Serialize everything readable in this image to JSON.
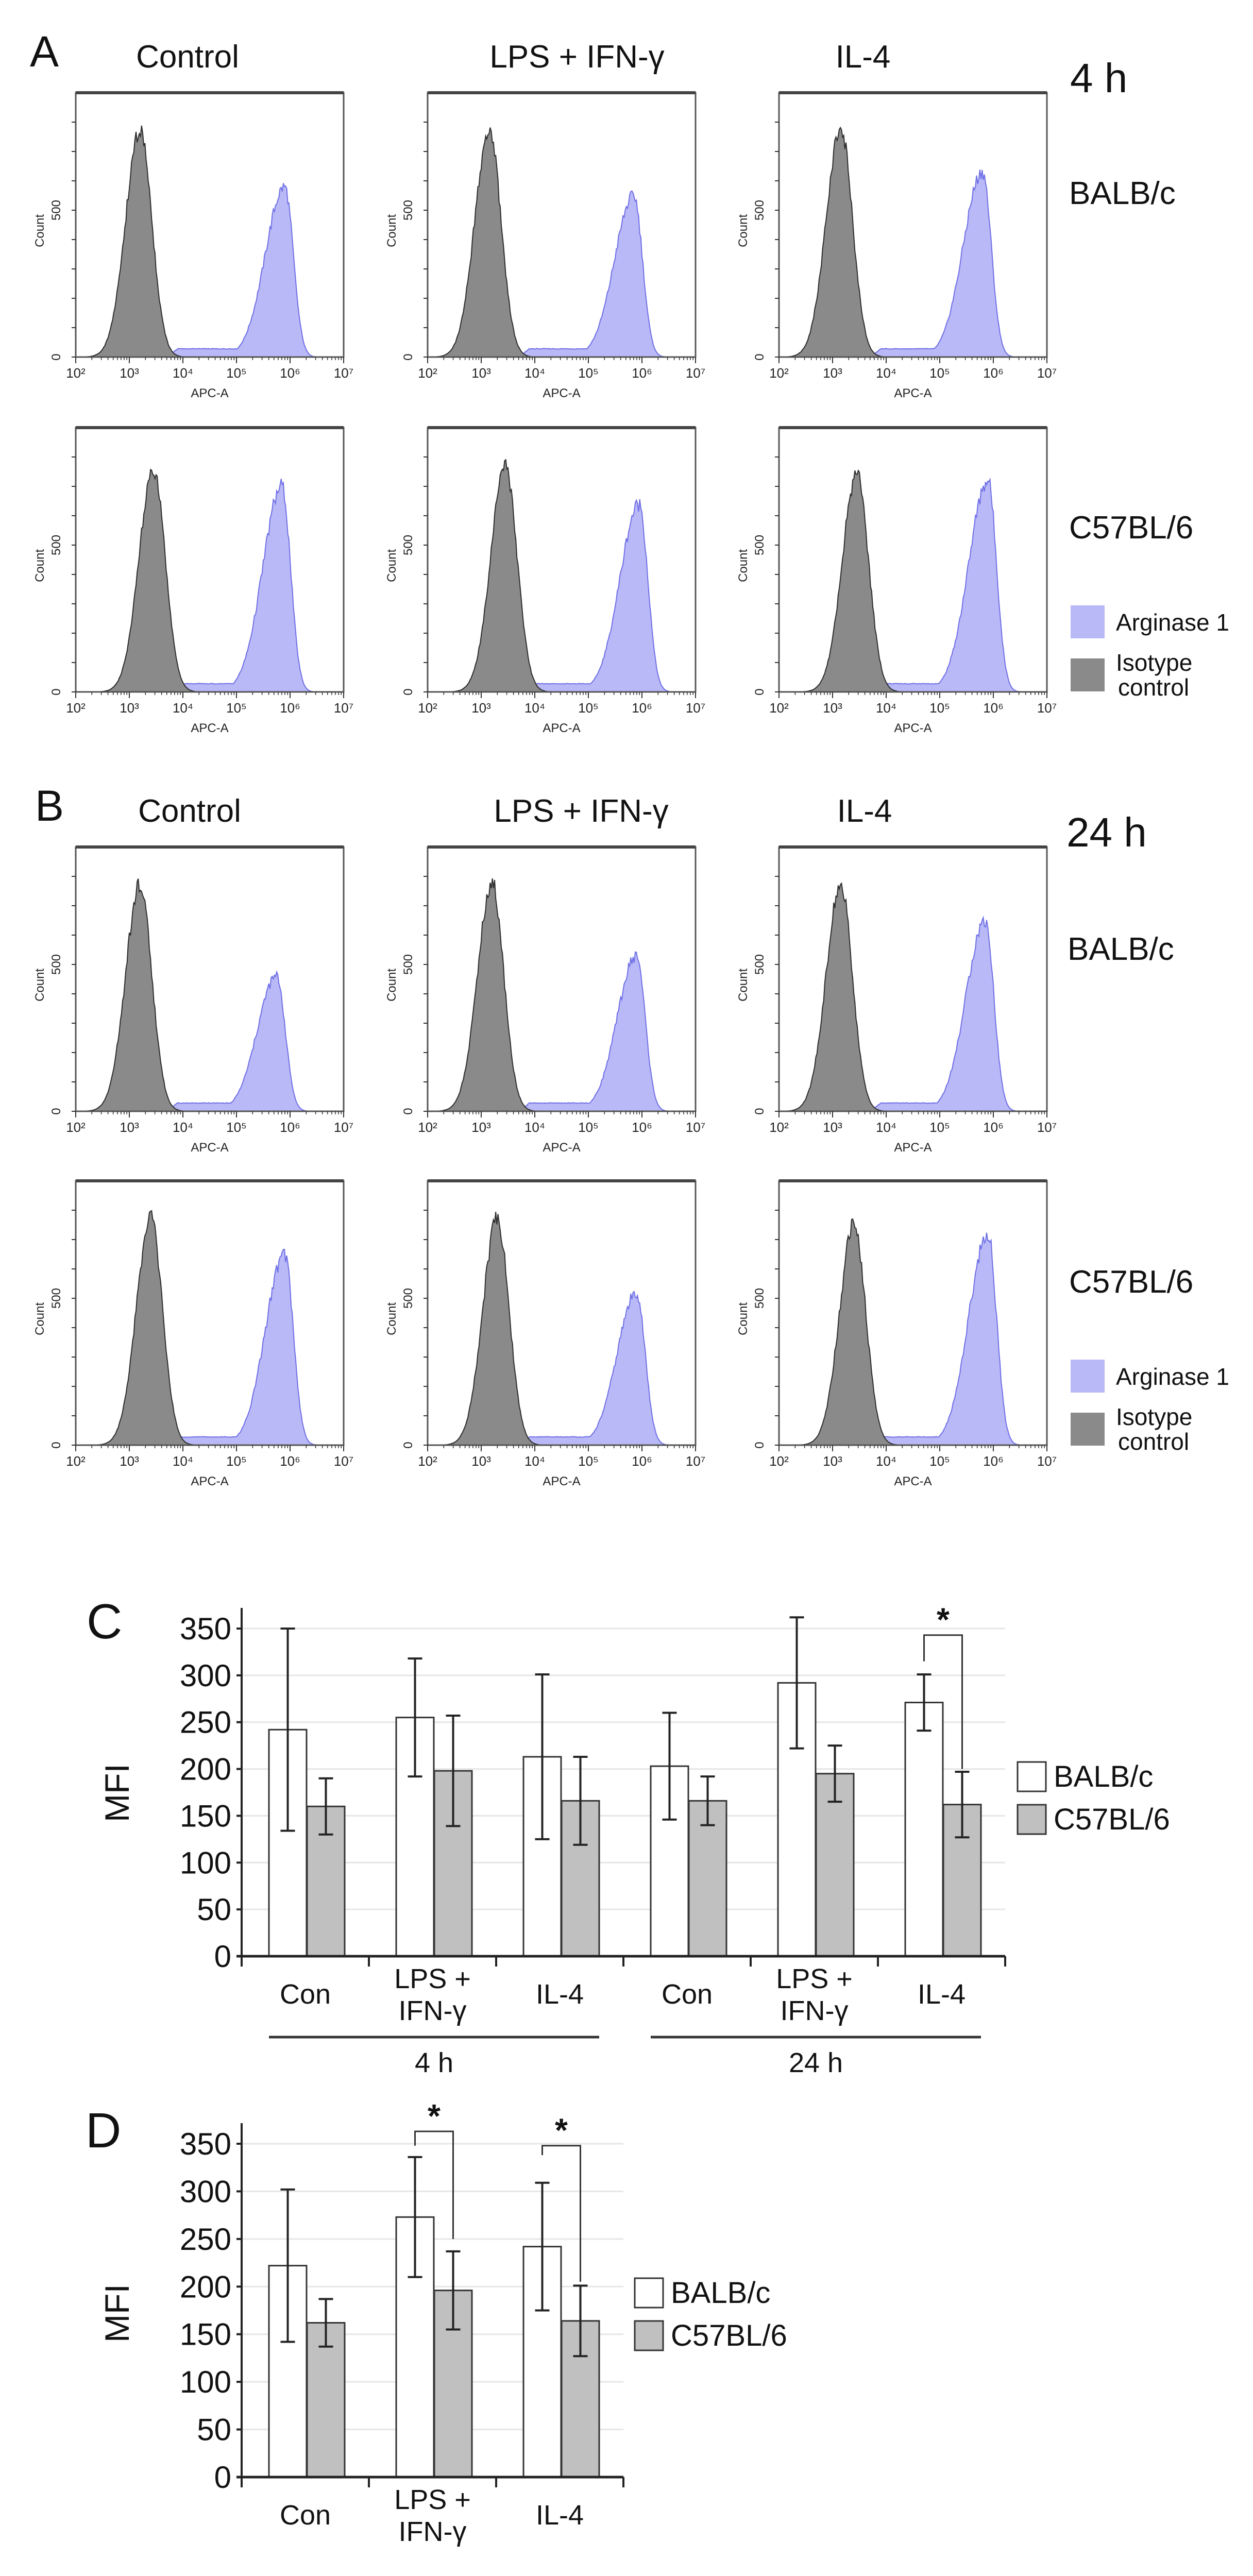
{
  "panel_labels": {
    "A": "A",
    "B": "B",
    "C": "C",
    "D": "D"
  },
  "flow": {
    "A": {
      "time": "4 h",
      "columns": [
        "Control",
        "LPS + IFN-γ",
        "IL-4"
      ],
      "rows": [
        "BALB/c",
        "C57BL/6"
      ]
    },
    "B": {
      "time": "24 h",
      "columns": [
        "Control",
        "LPS + IFN-γ",
        "IL-4"
      ],
      "rows": [
        "BALB/c",
        "C57BL/6"
      ]
    },
    "legend": [
      {
        "label": "Arginase 1",
        "color": "#b9b9f7"
      },
      {
        "label": "Isotype\ncontrol",
        "label_line1": "Isotype",
        "label_line2": "control",
        "color": "#8a8a8a"
      }
    ]
  },
  "histogram_axes": {
    "xlabel": "APC-A",
    "ylabel": "Count",
    "x_ticks": [
      "10²",
      "10³",
      "10⁴",
      "10⁵",
      "10⁶",
      "10⁷"
    ],
    "xlim_log10": [
      2,
      7
    ],
    "y_ticks": [
      "0",
      "500"
    ],
    "ylim": [
      0,
      900
    ]
  },
  "chart_data": [
    {
      "type": "area",
      "panel": "A",
      "time": "4 h",
      "strain": "BALB/c",
      "treatment": "Control",
      "series": [
        {
          "name": "Isotype control",
          "peak_log10": 3.2,
          "peak_count": 770
        },
        {
          "name": "Arginase 1",
          "peak_log10": 5.9,
          "peak_count": 580
        }
      ]
    },
    {
      "type": "area",
      "panel": "A",
      "time": "4 h",
      "strain": "BALB/c",
      "treatment": "LPS + IFN-γ",
      "series": [
        {
          "name": "Isotype control",
          "peak_log10": 3.15,
          "peak_count": 770
        },
        {
          "name": "Arginase 1",
          "peak_log10": 5.85,
          "peak_count": 550
        }
      ]
    },
    {
      "type": "area",
      "panel": "A",
      "time": "4 h",
      "strain": "BALB/c",
      "treatment": "IL-4",
      "series": [
        {
          "name": "Isotype control",
          "peak_log10": 3.15,
          "peak_count": 780
        },
        {
          "name": "Arginase 1",
          "peak_log10": 5.8,
          "peak_count": 630
        }
      ]
    },
    {
      "type": "area",
      "panel": "A",
      "time": "4 h",
      "strain": "C57BL/6",
      "treatment": "Control",
      "series": [
        {
          "name": "Isotype control",
          "peak_log10": 3.45,
          "peak_count": 750
        },
        {
          "name": "Arginase 1",
          "peak_log10": 5.85,
          "peak_count": 700
        }
      ]
    },
    {
      "type": "area",
      "panel": "A",
      "time": "4 h",
      "strain": "C57BL/6",
      "treatment": "LPS + IFN-γ",
      "series": [
        {
          "name": "Isotype control",
          "peak_log10": 3.45,
          "peak_count": 770
        },
        {
          "name": "Arginase 1",
          "peak_log10": 5.95,
          "peak_count": 640
        }
      ]
    },
    {
      "type": "area",
      "panel": "A",
      "time": "4 h",
      "strain": "C57BL/6",
      "treatment": "IL-4",
      "series": [
        {
          "name": "Isotype control",
          "peak_log10": 3.45,
          "peak_count": 740
        },
        {
          "name": "Arginase 1",
          "peak_log10": 5.9,
          "peak_count": 720
        }
      ]
    },
    {
      "type": "area",
      "panel": "B",
      "time": "24 h",
      "strain": "BALB/c",
      "treatment": "Control",
      "series": [
        {
          "name": "Isotype control",
          "peak_log10": 3.2,
          "peak_count": 770
        },
        {
          "name": "Arginase 1",
          "peak_log10": 5.75,
          "peak_count": 460
        }
      ]
    },
    {
      "type": "area",
      "panel": "B",
      "time": "24 h",
      "strain": "BALB/c",
      "treatment": "LPS + IFN-γ",
      "series": [
        {
          "name": "Isotype control",
          "peak_log10": 3.2,
          "peak_count": 780
        },
        {
          "name": "Arginase 1",
          "peak_log10": 5.9,
          "peak_count": 530
        }
      ]
    },
    {
      "type": "area",
      "panel": "B",
      "time": "24 h",
      "strain": "BALB/c",
      "treatment": "IL-4",
      "series": [
        {
          "name": "Isotype control",
          "peak_log10": 3.15,
          "peak_count": 770
        },
        {
          "name": "Arginase 1",
          "peak_log10": 5.85,
          "peak_count": 650
        }
      ]
    },
    {
      "type": "area",
      "panel": "B",
      "time": "24 h",
      "strain": "C57BL/6",
      "treatment": "Control",
      "series": [
        {
          "name": "Isotype control",
          "peak_log10": 3.4,
          "peak_count": 770
        },
        {
          "name": "Arginase 1",
          "peak_log10": 5.9,
          "peak_count": 650
        }
      ]
    },
    {
      "type": "area",
      "panel": "B",
      "time": "24 h",
      "strain": "C57BL/6",
      "treatment": "LPS + IFN-γ",
      "series": [
        {
          "name": "Isotype control",
          "peak_log10": 3.3,
          "peak_count": 770
        },
        {
          "name": "Arginase 1",
          "peak_log10": 5.9,
          "peak_count": 520
        }
      ]
    },
    {
      "type": "area",
      "panel": "B",
      "time": "24 h",
      "strain": "C57BL/6",
      "treatment": "IL-4",
      "series": [
        {
          "name": "Isotype control",
          "peak_log10": 3.4,
          "peak_count": 750
        },
        {
          "name": "Arginase 1",
          "peak_log10": 5.9,
          "peak_count": 720
        }
      ]
    },
    {
      "type": "bar",
      "panel": "C",
      "ylabel": "MFI",
      "ylim": [
        0,
        350
      ],
      "yticks": [
        0,
        50,
        100,
        150,
        200,
        250,
        300,
        350
      ],
      "grid": true,
      "categories": [
        "Con",
        "LPS + IFN-γ",
        "IL-4",
        "Con",
        "LPS + IFN-γ",
        "IL-4"
      ],
      "groups": [
        {
          "label": "4 h",
          "from": 0,
          "to": 2
        },
        {
          "label": "24 h",
          "from": 3,
          "to": 5
        }
      ],
      "series": [
        {
          "name": "BALB/c",
          "color": "#ffffff",
          "values": [
            242,
            255,
            213,
            203,
            292,
            271
          ],
          "errors": [
            108,
            63,
            88,
            57,
            70,
            30
          ]
        },
        {
          "name": "C57BL/6",
          "color": "#c0c0c0",
          "values": [
            160,
            198,
            166,
            166,
            195,
            162
          ],
          "errors": [
            30,
            59,
            47,
            26,
            30,
            35
          ]
        }
      ],
      "legend": "right",
      "significance": [
        {
          "category": 5,
          "label": "*",
          "top": 343,
          "left_end": 315,
          "right_end": 200
        }
      ]
    },
    {
      "type": "bar",
      "panel": "D",
      "ylabel": "MFI",
      "ylim": [
        0,
        350
      ],
      "yticks": [
        0,
        50,
        100,
        150,
        200,
        250,
        300,
        350
      ],
      "grid": true,
      "categories": [
        "Con",
        "LPS + IFN-γ",
        "IL-4"
      ],
      "series": [
        {
          "name": "BALB/c",
          "color": "#ffffff",
          "values": [
            222,
            273,
            242
          ],
          "errors": [
            80,
            63,
            67
          ]
        },
        {
          "name": "C57BL/6",
          "color": "#c0c0c0",
          "values": [
            162,
            196,
            164
          ],
          "errors": [
            25,
            41,
            37
          ]
        }
      ],
      "legend": "right",
      "significance": [
        {
          "category": 1,
          "label": "*",
          "top": 363,
          "left_end": 348,
          "right_end": 250
        },
        {
          "category": 2,
          "label": "*",
          "top": 348,
          "left_end": 338,
          "right_end": 205
        }
      ]
    }
  ]
}
